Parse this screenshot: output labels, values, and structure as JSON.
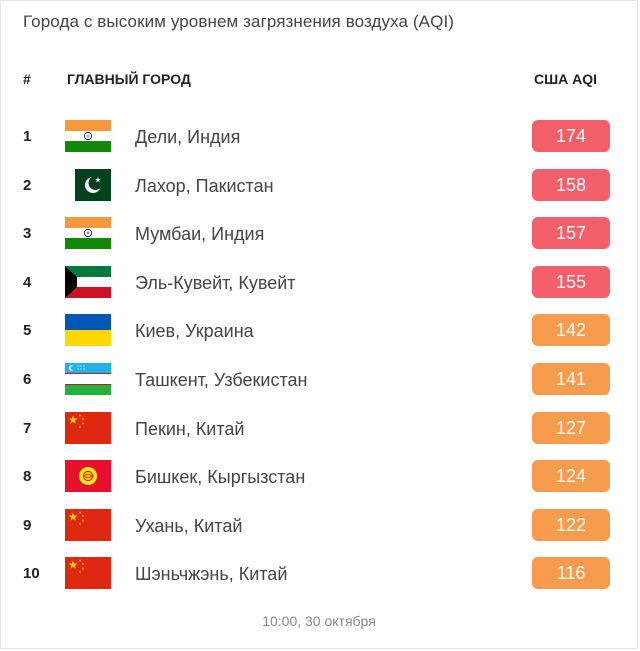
{
  "title": "Города с высоким уровнем загрязнения воздуха (AQI)",
  "headers": {
    "rank": "#",
    "city": "ГЛАВНЫЙ ГОРОД",
    "aqi": "США AQI"
  },
  "colors": {
    "high": "#f4606a",
    "medium": "#f79c4c"
  },
  "rows": [
    {
      "rank": "1",
      "city": "Дели, Индия",
      "aqi": "174",
      "flag": "india-flag-icon",
      "level": "high"
    },
    {
      "rank": "2",
      "city": "Лахор, Пакистан",
      "aqi": "158",
      "flag": "pakistan-flag-icon",
      "level": "high"
    },
    {
      "rank": "3",
      "city": "Мумбаи, Индия",
      "aqi": "157",
      "flag": "india-flag-icon",
      "level": "high"
    },
    {
      "rank": "4",
      "city": "Эль-Кувейт, Кувейт",
      "aqi": "155",
      "flag": "kuwait-flag-icon",
      "level": "high"
    },
    {
      "rank": "5",
      "city": "Киев, Украина",
      "aqi": "142",
      "flag": "ukraine-flag-icon",
      "level": "medium"
    },
    {
      "rank": "6",
      "city": "Ташкент, Узбекистан",
      "aqi": "141",
      "flag": "uzbekistan-flag-icon",
      "level": "medium"
    },
    {
      "rank": "7",
      "city": "Пекин, Китай",
      "aqi": "127",
      "flag": "china-flag-icon",
      "level": "medium"
    },
    {
      "rank": "8",
      "city": "Бишкек, Кыргызстан",
      "aqi": "124",
      "flag": "kyrgyzstan-flag-icon",
      "level": "medium"
    },
    {
      "rank": "9",
      "city": "Ухань, Китай",
      "aqi": "122",
      "flag": "china-flag-icon",
      "level": "medium"
    },
    {
      "rank": "10",
      "city": "Шэньчжэнь, Китай",
      "aqi": "116",
      "flag": "china-flag-icon",
      "level": "medium"
    }
  ],
  "footer": "10:00, 30 октября"
}
